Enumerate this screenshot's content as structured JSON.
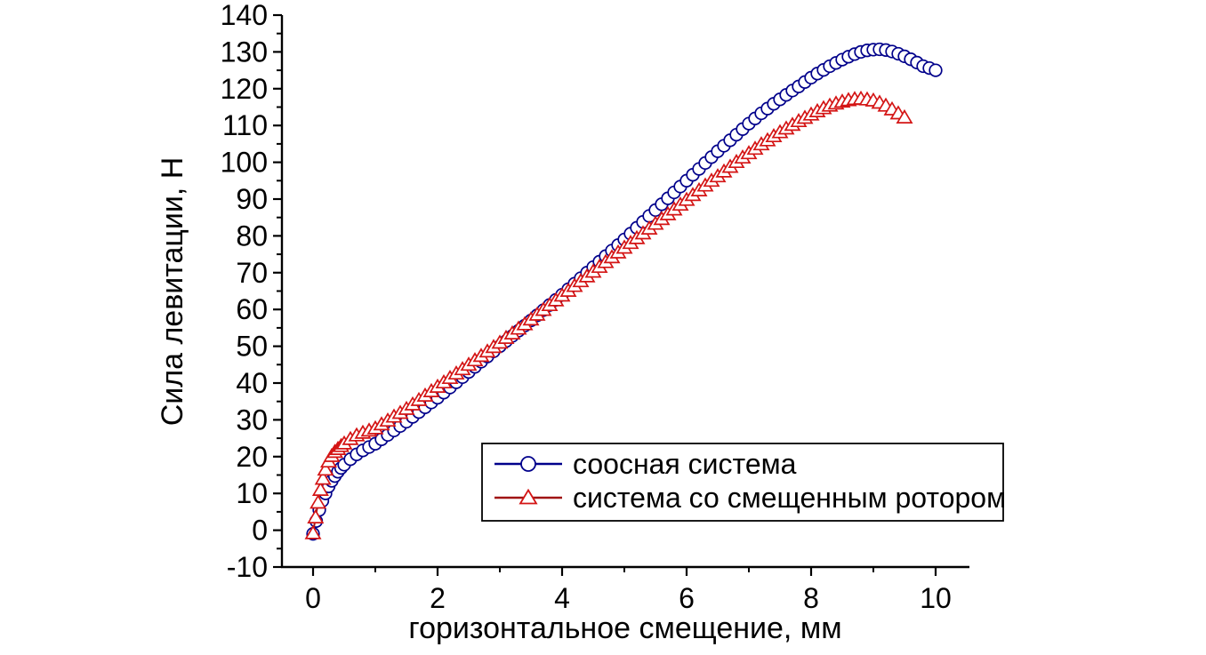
{
  "chart_data": {
    "type": "line",
    "title": "",
    "xlabel": "горизонтальное смещение, мм",
    "ylabel": "Сила левитации, Н",
    "xlim": [
      -0.5,
      10.5
    ],
    "ylim": [
      -10,
      140
    ],
    "x_ticks": [
      0,
      2,
      4,
      6,
      8,
      10
    ],
    "x_minor_ticks": [
      1,
      3,
      5,
      7,
      9
    ],
    "y_ticks": [
      -10,
      0,
      10,
      20,
      30,
      40,
      50,
      60,
      70,
      80,
      90,
      100,
      110,
      120,
      130,
      140
    ],
    "y_minor_ticks": [
      -5,
      5,
      15,
      25,
      35,
      45,
      55,
      65,
      75,
      85,
      95,
      105,
      115,
      125,
      135
    ],
    "grid": false,
    "legend_position": "inside-bottom-center",
    "legend_border_color": "#000000",
    "background_color": "#ffffff",
    "axis_color": "#000000",
    "series": [
      {
        "name": "соосная система",
        "marker": "circle",
        "line_color": "#00008b",
        "marker_color": "#00008b",
        "points": [
          [
            0,
            -1
          ],
          [
            0.05,
            2.5
          ],
          [
            0.1,
            5.5
          ],
          [
            0.15,
            8
          ],
          [
            0.2,
            10
          ],
          [
            0.25,
            11.9
          ],
          [
            0.3,
            13.4
          ],
          [
            0.35,
            14.7
          ],
          [
            0.4,
            15.9
          ],
          [
            0.45,
            16.9
          ],
          [
            0.5,
            17.8
          ],
          [
            0.6,
            19.3
          ],
          [
            0.7,
            20.6
          ],
          [
            0.8,
            21.7
          ],
          [
            0.9,
            22.6
          ],
          [
            1,
            23.5
          ],
          [
            1.1,
            24.7
          ],
          [
            1.2,
            25.9
          ],
          [
            1.3,
            27.1
          ],
          [
            1.4,
            28.3
          ],
          [
            1.5,
            29.5
          ],
          [
            1.6,
            30.8
          ],
          [
            1.7,
            32.1
          ],
          [
            1.8,
            33.4
          ],
          [
            1.9,
            34.7
          ],
          [
            2,
            36
          ],
          [
            2.1,
            37.4
          ],
          [
            2.2,
            38.8
          ],
          [
            2.3,
            40.2
          ],
          [
            2.4,
            41.6
          ],
          [
            2.5,
            43
          ],
          [
            2.6,
            44.4
          ],
          [
            2.7,
            45.8
          ],
          [
            2.8,
            47.2
          ],
          [
            2.9,
            48.6
          ],
          [
            3,
            50
          ],
          [
            3.1,
            51.4
          ],
          [
            3.2,
            52.8
          ],
          [
            3.3,
            54.2
          ],
          [
            3.4,
            55.6
          ],
          [
            3.5,
            57
          ],
          [
            3.6,
            58.4
          ],
          [
            3.7,
            59.8
          ],
          [
            3.8,
            61.2
          ],
          [
            3.9,
            62.6
          ],
          [
            4,
            64
          ],
          [
            4.1,
            65.5
          ],
          [
            4.2,
            67
          ],
          [
            4.3,
            68.5
          ],
          [
            4.4,
            70
          ],
          [
            4.5,
            71.5
          ],
          [
            4.6,
            73
          ],
          [
            4.7,
            74.5
          ],
          [
            4.8,
            76
          ],
          [
            4.9,
            77.5
          ],
          [
            5,
            79
          ],
          [
            5.1,
            80.6
          ],
          [
            5.2,
            82.2
          ],
          [
            5.3,
            83.8
          ],
          [
            5.4,
            85.4
          ],
          [
            5.5,
            87
          ],
          [
            5.6,
            88.6
          ],
          [
            5.7,
            90.2
          ],
          [
            5.8,
            91.8
          ],
          [
            5.9,
            93.4
          ],
          [
            6,
            95
          ],
          [
            6.1,
            96.6
          ],
          [
            6.2,
            98.2
          ],
          [
            6.3,
            99.8
          ],
          [
            6.4,
            101.4
          ],
          [
            6.5,
            103
          ],
          [
            6.6,
            104.5
          ],
          [
            6.7,
            106
          ],
          [
            6.8,
            107.5
          ],
          [
            6.9,
            109
          ],
          [
            7,
            110.5
          ],
          [
            7.1,
            111.9
          ],
          [
            7.2,
            113.3
          ],
          [
            7.3,
            114.6
          ],
          [
            7.4,
            115.9
          ],
          [
            7.5,
            117.1
          ],
          [
            7.6,
            118.3
          ],
          [
            7.7,
            119.5
          ],
          [
            7.8,
            120.6
          ],
          [
            7.9,
            121.8
          ],
          [
            8,
            123
          ],
          [
            8.1,
            124.1
          ],
          [
            8.2,
            125.1
          ],
          [
            8.3,
            126.1
          ],
          [
            8.4,
            127
          ],
          [
            8.5,
            127.9
          ],
          [
            8.6,
            128.7
          ],
          [
            8.7,
            129.4
          ],
          [
            8.8,
            130
          ],
          [
            8.9,
            130.4
          ],
          [
            9,
            130.6
          ],
          [
            9.1,
            130.7
          ],
          [
            9.2,
            130.5
          ],
          [
            9.3,
            130.1
          ],
          [
            9.4,
            129.5
          ],
          [
            9.5,
            128.8
          ],
          [
            9.6,
            128
          ],
          [
            9.7,
            127.1
          ],
          [
            9.8,
            126.1
          ],
          [
            9.9,
            125.6
          ],
          [
            10,
            125
          ]
        ]
      },
      {
        "name": "система со смещенным ротором",
        "marker": "triangle",
        "line_color": "#a01414",
        "marker_color": "#d41414",
        "points": [
          [
            0,
            -0.8
          ],
          [
            0.04,
            3.5
          ],
          [
            0.08,
            7.5
          ],
          [
            0.12,
            11
          ],
          [
            0.16,
            14
          ],
          [
            0.2,
            16.5
          ],
          [
            0.25,
            18.7
          ],
          [
            0.3,
            20.2
          ],
          [
            0.35,
            21.3
          ],
          [
            0.4,
            22.1
          ],
          [
            0.45,
            22.9
          ],
          [
            0.5,
            23.6
          ],
          [
            0.6,
            24.8
          ],
          [
            0.7,
            25.8
          ],
          [
            0.8,
            26.5
          ],
          [
            0.9,
            27.1
          ],
          [
            1,
            27.7
          ],
          [
            1.1,
            28.8
          ],
          [
            1.2,
            29.8
          ],
          [
            1.3,
            30.9
          ],
          [
            1.4,
            31.9
          ],
          [
            1.5,
            33
          ],
          [
            1.6,
            34.2
          ],
          [
            1.7,
            35.4
          ],
          [
            1.8,
            36.6
          ],
          [
            1.9,
            37.8
          ],
          [
            2,
            39
          ],
          [
            2.1,
            40.2
          ],
          [
            2.2,
            41.4
          ],
          [
            2.3,
            42.6
          ],
          [
            2.4,
            43.8
          ],
          [
            2.5,
            45
          ],
          [
            2.6,
            46.2
          ],
          [
            2.7,
            47.4
          ],
          [
            2.8,
            48.6
          ],
          [
            2.9,
            49.8
          ],
          [
            3,
            51
          ],
          [
            3.1,
            52.3
          ],
          [
            3.2,
            53.5
          ],
          [
            3.3,
            54.8
          ],
          [
            3.4,
            56
          ],
          [
            3.5,
            57.3
          ],
          [
            3.6,
            58.6
          ],
          [
            3.7,
            59.9
          ],
          [
            3.8,
            61.2
          ],
          [
            3.9,
            62.5
          ],
          [
            4,
            63.8
          ],
          [
            4.1,
            65.1
          ],
          [
            4.2,
            66.4
          ],
          [
            4.3,
            67.7
          ],
          [
            4.4,
            69
          ],
          [
            4.5,
            70.3
          ],
          [
            4.6,
            71.6
          ],
          [
            4.7,
            72.9
          ],
          [
            4.8,
            74.2
          ],
          [
            4.9,
            75.5
          ],
          [
            5,
            76.8
          ],
          [
            5.1,
            78.1
          ],
          [
            5.2,
            79.4
          ],
          [
            5.3,
            80.7
          ],
          [
            5.4,
            82
          ],
          [
            5.5,
            83.3
          ],
          [
            5.6,
            84.6
          ],
          [
            5.7,
            85.9
          ],
          [
            5.8,
            87.2
          ],
          [
            5.9,
            88.5
          ],
          [
            6,
            89.8
          ],
          [
            6.1,
            91.1
          ],
          [
            6.2,
            92.4
          ],
          [
            6.3,
            93.7
          ],
          [
            6.4,
            95
          ],
          [
            6.5,
            96.2
          ],
          [
            6.6,
            97.5
          ],
          [
            6.7,
            98.8
          ],
          [
            6.8,
            100.1
          ],
          [
            6.9,
            101.3
          ],
          [
            7,
            102.5
          ],
          [
            7.1,
            103.7
          ],
          [
            7.2,
            104.9
          ],
          [
            7.3,
            106
          ],
          [
            7.4,
            107.1
          ],
          [
            7.5,
            108.2
          ],
          [
            7.6,
            109.2
          ],
          [
            7.7,
            110.2
          ],
          [
            7.8,
            111.2
          ],
          [
            7.9,
            112.1
          ],
          [
            8,
            113
          ],
          [
            8.1,
            113.9
          ],
          [
            8.2,
            114.7
          ],
          [
            8.3,
            115.4
          ],
          [
            8.4,
            116
          ],
          [
            8.5,
            116.5
          ],
          [
            8.6,
            116.9
          ],
          [
            8.7,
            117.2
          ],
          [
            8.8,
            117.3
          ],
          [
            8.9,
            117.1
          ],
          [
            9,
            116.8
          ],
          [
            9.1,
            116.2
          ],
          [
            9.2,
            115.4
          ],
          [
            9.3,
            114.4
          ],
          [
            9.4,
            113.3
          ],
          [
            9.5,
            112.2
          ]
        ]
      }
    ]
  }
}
